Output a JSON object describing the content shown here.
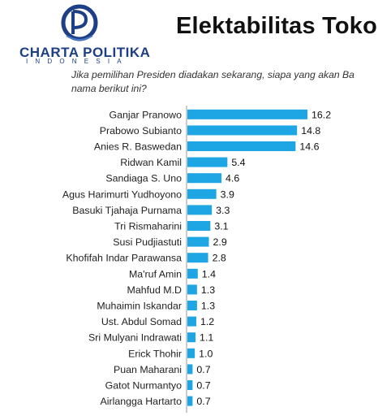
{
  "logo": {
    "name": "CHARTA POLITIKA",
    "sub": "INDONESIA",
    "brand_color": "#1d3f86",
    "icon": "globe-logo-icon"
  },
  "title": "Elektabilitas Toko",
  "question": "Jika pemilihan Presiden diadakan sekarang, siapa yang akan Ba nama berikut ini?",
  "chart_data": {
    "type": "bar",
    "orientation": "horizontal",
    "bar_color": "#1ea5e3",
    "categories": [
      "Ganjar Pranowo",
      "Prabowo Subianto",
      "Anies R. Baswedan",
      "Ridwan Kamil",
      "Sandiaga S. Uno",
      "Agus Harimurti Yudhoyono",
      "Basuki Tjahaja Purnama",
      "Tri Rismaharini",
      "Susi Pudjiastuti",
      "Khofifah Indar Parawansa",
      "Ma'ruf Amin",
      "Mahfud M.D",
      "Muhaimin Iskandar",
      "Ust. Abdul Somad",
      "Sri Mulyani Indrawati",
      "Erick Thohir",
      "Puan Maharani",
      "Gatot Nurmantyo",
      "Airlangga Hartarto"
    ],
    "values": [
      16.2,
      14.8,
      14.6,
      5.4,
      4.6,
      3.9,
      3.3,
      3.1,
      2.9,
      2.8,
      1.4,
      1.3,
      1.3,
      1.2,
      1.1,
      1.0,
      0.7,
      0.7,
      0.7
    ],
    "value_labels": [
      "16.2",
      "14.8",
      "14.6",
      "5.4",
      "4.6",
      "3.9",
      "3.3",
      "3.1",
      "2.9",
      "2.8",
      "1.4",
      "1.3",
      "1.3",
      "1.2",
      "1.1",
      "1.0",
      "0.7",
      "0.7",
      "0.7"
    ],
    "xlim": [
      0,
      16.2
    ],
    "grid": false,
    "legend": "none"
  }
}
